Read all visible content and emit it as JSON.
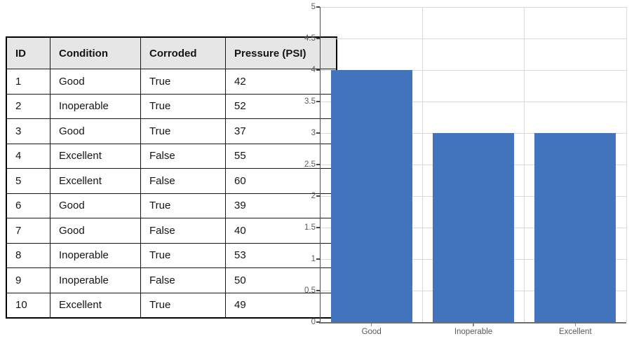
{
  "table": {
    "columns": [
      "ID",
      "Condition",
      "Corroded",
      "Pressure (PSI)"
    ],
    "rows": [
      [
        "1",
        "Good",
        "True",
        "42"
      ],
      [
        "2",
        "Inoperable",
        "True",
        "52"
      ],
      [
        "3",
        "Good",
        "True",
        "37"
      ],
      [
        "4",
        "Excellent",
        "False",
        "55"
      ],
      [
        "5",
        "Excellent",
        "False",
        "60"
      ],
      [
        "6",
        "Good",
        "True",
        "39"
      ],
      [
        "7",
        "Good",
        "False",
        "40"
      ],
      [
        "8",
        "Inoperable",
        "True",
        "53"
      ],
      [
        "9",
        "Inoperable",
        "False",
        "50"
      ],
      [
        "10",
        "Excellent",
        "True",
        "49"
      ]
    ]
  },
  "chart_data": {
    "type": "bar",
    "categories": [
      "Good",
      "Inoperable",
      "Excellent"
    ],
    "values": [
      4,
      3,
      3
    ],
    "title": "",
    "xlabel": "",
    "ylabel": "",
    "ylim": [
      0,
      5
    ],
    "ytick_step": 0.5,
    "grid": true,
    "legend_position": "none",
    "colors": {
      "bar": "#4273BD",
      "gridline": "#D9D9D9",
      "axis": "#4a4a4a",
      "tick_label": "#595959",
      "table_header_bg": "#E7E6E6",
      "table_border": "#161616"
    }
  }
}
